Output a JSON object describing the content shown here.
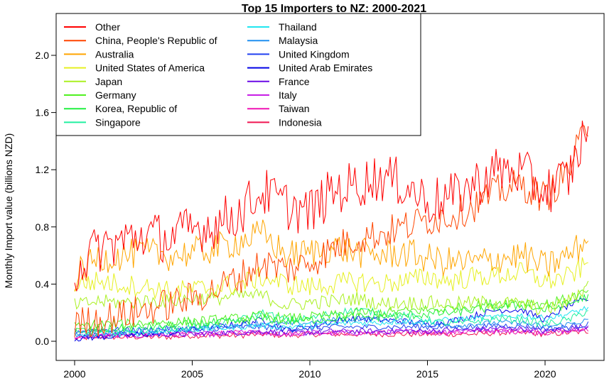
{
  "chart_data": {
    "type": "line",
    "title": "Top 15 Importers to NZ: 2000-2021",
    "ylabel": "Monthly Import value (billions NZD)",
    "xlabel": "",
    "xlim": [
      2000,
      2022
    ],
    "ylim": [
      0,
      2.1
    ],
    "x_ticks": [
      2000,
      2005,
      2010,
      2015,
      2020
    ],
    "y_ticks": [
      0.0,
      0.4,
      0.8,
      1.2,
      1.6,
      2.0
    ],
    "x_tick_labels": [
      "2000",
      "2005",
      "2010",
      "2015",
      "2020"
    ],
    "y_tick_labels": [
      "0.0",
      "0.4",
      "0.8",
      "1.2",
      "1.6",
      "2.0"
    ],
    "legend_position": "top-left",
    "series": [
      {
        "name": "Other",
        "color": "#FF0000",
        "x": [
          2000,
          2001,
          2002,
          2003,
          2004,
          2005,
          2006,
          2007,
          2008,
          2009,
          2010,
          2011,
          2012,
          2013,
          2014,
          2015,
          2016,
          2017,
          2018,
          2019,
          2020,
          2021,
          2021.9
        ],
        "values": [
          0.5,
          0.65,
          0.7,
          0.75,
          0.72,
          0.78,
          0.82,
          0.9,
          1.05,
          0.95,
          0.9,
          1.05,
          1.1,
          1.15,
          1.1,
          0.98,
          1.0,
          1.1,
          1.2,
          1.18,
          1.05,
          1.15,
          1.55
        ]
      },
      {
        "name": "China, People's Republic of",
        "color": "#FF4500",
        "x": [
          2000,
          2001,
          2002,
          2003,
          2004,
          2005,
          2006,
          2007,
          2008,
          2009,
          2010,
          2011,
          2012,
          2013,
          2014,
          2015,
          2016,
          2017,
          2018,
          2019,
          2020,
          2021,
          2021.9
        ],
        "values": [
          0.12,
          0.15,
          0.18,
          0.22,
          0.26,
          0.3,
          0.36,
          0.45,
          0.55,
          0.5,
          0.55,
          0.65,
          0.72,
          0.75,
          0.8,
          0.85,
          0.88,
          0.95,
          1.05,
          1.1,
          1.0,
          1.2,
          1.55
        ]
      },
      {
        "name": "Australia",
        "color": "#FFA500",
        "x": [
          2000,
          2001,
          2002,
          2003,
          2004,
          2005,
          2006,
          2007,
          2008,
          2009,
          2010,
          2011,
          2012,
          2013,
          2014,
          2015,
          2016,
          2017,
          2018,
          2019,
          2020,
          2021,
          2021.9
        ],
        "values": [
          0.45,
          0.58,
          0.6,
          0.62,
          0.6,
          0.62,
          0.65,
          0.7,
          0.75,
          0.6,
          0.62,
          0.66,
          0.62,
          0.6,
          0.62,
          0.58,
          0.55,
          0.55,
          0.58,
          0.6,
          0.52,
          0.6,
          0.72
        ]
      },
      {
        "name": "United States of America",
        "color": "#E6F020",
        "x": [
          2000,
          2001,
          2002,
          2003,
          2004,
          2005,
          2006,
          2007,
          2008,
          2009,
          2010,
          2011,
          2012,
          2013,
          2014,
          2015,
          2016,
          2017,
          2018,
          2019,
          2020,
          2021,
          2021.9
        ],
        "values": [
          0.4,
          0.42,
          0.4,
          0.38,
          0.35,
          0.36,
          0.38,
          0.4,
          0.45,
          0.4,
          0.38,
          0.4,
          0.42,
          0.4,
          0.42,
          0.45,
          0.42,
          0.45,
          0.46,
          0.48,
          0.42,
          0.45,
          0.55
        ]
      },
      {
        "name": "Japan",
        "color": "#AAF020",
        "x": [
          2000,
          2001,
          2002,
          2003,
          2004,
          2005,
          2006,
          2007,
          2008,
          2009,
          2010,
          2011,
          2012,
          2013,
          2014,
          2015,
          2016,
          2017,
          2018,
          2019,
          2020,
          2021,
          2021.9
        ],
        "values": [
          0.25,
          0.28,
          0.27,
          0.28,
          0.28,
          0.3,
          0.3,
          0.32,
          0.32,
          0.25,
          0.27,
          0.28,
          0.3,
          0.26,
          0.27,
          0.27,
          0.26,
          0.27,
          0.27,
          0.26,
          0.22,
          0.28,
          0.4
        ]
      },
      {
        "name": "Germany",
        "color": "#50F020",
        "x": [
          2000,
          2001,
          2002,
          2003,
          2004,
          2005,
          2006,
          2007,
          2008,
          2009,
          2010,
          2011,
          2012,
          2013,
          2014,
          2015,
          2016,
          2017,
          2018,
          2019,
          2020,
          2021,
          2021.9
        ],
        "values": [
          0.1,
          0.12,
          0.12,
          0.13,
          0.13,
          0.14,
          0.15,
          0.16,
          0.18,
          0.16,
          0.17,
          0.18,
          0.2,
          0.2,
          0.21,
          0.22,
          0.23,
          0.25,
          0.27,
          0.28,
          0.26,
          0.3,
          0.35
        ]
      },
      {
        "name": "Korea, Republic of",
        "color": "#20F040",
        "x": [
          2000,
          2001,
          2002,
          2003,
          2004,
          2005,
          2006,
          2007,
          2008,
          2009,
          2010,
          2011,
          2012,
          2013,
          2014,
          2015,
          2016,
          2017,
          2018,
          2019,
          2020,
          2021,
          2021.9
        ],
        "values": [
          0.07,
          0.08,
          0.09,
          0.1,
          0.11,
          0.12,
          0.13,
          0.14,
          0.16,
          0.14,
          0.15,
          0.16,
          0.17,
          0.17,
          0.18,
          0.19,
          0.2,
          0.22,
          0.24,
          0.25,
          0.22,
          0.26,
          0.32
        ]
      },
      {
        "name": "Singapore",
        "color": "#20F0A0",
        "x": [
          2000,
          2001,
          2002,
          2003,
          2004,
          2005,
          2006,
          2007,
          2008,
          2009,
          2010,
          2011,
          2012,
          2013,
          2014,
          2015,
          2016,
          2017,
          2018,
          2019,
          2020,
          2021,
          2021.9
        ],
        "values": [
          0.05,
          0.06,
          0.07,
          0.08,
          0.09,
          0.1,
          0.12,
          0.15,
          0.2,
          0.15,
          0.16,
          0.2,
          0.22,
          0.2,
          0.18,
          0.15,
          0.12,
          0.14,
          0.16,
          0.15,
          0.12,
          0.15,
          0.22
        ]
      },
      {
        "name": "Thailand",
        "color": "#20E6F0",
        "x": [
          2000,
          2001,
          2002,
          2003,
          2004,
          2005,
          2006,
          2007,
          2008,
          2009,
          2010,
          2011,
          2012,
          2013,
          2014,
          2015,
          2016,
          2017,
          2018,
          2019,
          2020,
          2021,
          2021.9
        ],
        "values": [
          0.04,
          0.05,
          0.05,
          0.06,
          0.07,
          0.08,
          0.09,
          0.1,
          0.11,
          0.1,
          0.11,
          0.12,
          0.13,
          0.13,
          0.14,
          0.14,
          0.15,
          0.16,
          0.17,
          0.18,
          0.16,
          0.19,
          0.24
        ]
      },
      {
        "name": "Malaysia",
        "color": "#2090F0",
        "x": [
          2000,
          2001,
          2002,
          2003,
          2004,
          2005,
          2006,
          2007,
          2008,
          2009,
          2010,
          2011,
          2012,
          2013,
          2014,
          2015,
          2016,
          2017,
          2018,
          2019,
          2020,
          2021,
          2021.9
        ],
        "values": [
          0.05,
          0.06,
          0.06,
          0.07,
          0.08,
          0.09,
          0.1,
          0.11,
          0.13,
          0.12,
          0.13,
          0.15,
          0.16,
          0.15,
          0.14,
          0.12,
          0.11,
          0.12,
          0.13,
          0.13,
          0.1,
          0.12,
          0.15
        ]
      },
      {
        "name": "United Kingdom",
        "color": "#2040F0",
        "x": [
          2000,
          2001,
          2002,
          2003,
          2004,
          2005,
          2006,
          2007,
          2008,
          2009,
          2010,
          2011,
          2012,
          2013,
          2014,
          2015,
          2016,
          2017,
          2018,
          2019,
          2020,
          2021,
          2021.9
        ],
        "values": [
          0.07,
          0.08,
          0.08,
          0.08,
          0.09,
          0.09,
          0.09,
          0.1,
          0.1,
          0.09,
          0.09,
          0.1,
          0.1,
          0.1,
          0.1,
          0.1,
          0.1,
          0.1,
          0.11,
          0.11,
          0.09,
          0.1,
          0.12
        ]
      },
      {
        "name": "United Arab Emirates",
        "color": "#0000E6",
        "x": [
          2000,
          2001,
          2002,
          2003,
          2004,
          2005,
          2006,
          2007,
          2008,
          2009,
          2010,
          2011,
          2012,
          2013,
          2014,
          2015,
          2016,
          2017,
          2018,
          2019,
          2020,
          2021,
          2021.9
        ],
        "values": [
          0.02,
          0.03,
          0.04,
          0.05,
          0.06,
          0.08,
          0.1,
          0.12,
          0.15,
          0.08,
          0.1,
          0.14,
          0.16,
          0.15,
          0.14,
          0.12,
          0.14,
          0.18,
          0.22,
          0.22,
          0.15,
          0.25,
          0.3
        ]
      },
      {
        "name": "France",
        "color": "#6A0AE6",
        "x": [
          2000,
          2001,
          2002,
          2003,
          2004,
          2005,
          2006,
          2007,
          2008,
          2009,
          2010,
          2011,
          2012,
          2013,
          2014,
          2015,
          2016,
          2017,
          2018,
          2019,
          2020,
          2021,
          2021.9
        ],
        "values": [
          0.04,
          0.04,
          0.05,
          0.05,
          0.05,
          0.05,
          0.06,
          0.06,
          0.07,
          0.06,
          0.06,
          0.07,
          0.07,
          0.07,
          0.07,
          0.07,
          0.08,
          0.08,
          0.09,
          0.09,
          0.07,
          0.09,
          0.11
        ]
      },
      {
        "name": "Italy",
        "color": "#C81EE6",
        "x": [
          2000,
          2001,
          2002,
          2003,
          2004,
          2005,
          2006,
          2007,
          2008,
          2009,
          2010,
          2011,
          2012,
          2013,
          2014,
          2015,
          2016,
          2017,
          2018,
          2019,
          2020,
          2021,
          2021.9
        ],
        "values": [
          0.03,
          0.04,
          0.04,
          0.04,
          0.05,
          0.05,
          0.05,
          0.06,
          0.06,
          0.05,
          0.06,
          0.06,
          0.06,
          0.06,
          0.07,
          0.07,
          0.07,
          0.08,
          0.08,
          0.08,
          0.07,
          0.08,
          0.1
        ]
      },
      {
        "name": "Taiwan",
        "color": "#F014B4",
        "x": [
          2000,
          2001,
          2002,
          2003,
          2004,
          2005,
          2006,
          2007,
          2008,
          2009,
          2010,
          2011,
          2012,
          2013,
          2014,
          2015,
          2016,
          2017,
          2018,
          2019,
          2020,
          2021,
          2021.9
        ],
        "values": [
          0.03,
          0.04,
          0.04,
          0.04,
          0.05,
          0.05,
          0.05,
          0.06,
          0.06,
          0.05,
          0.06,
          0.06,
          0.06,
          0.06,
          0.06,
          0.06,
          0.06,
          0.07,
          0.07,
          0.07,
          0.06,
          0.07,
          0.09
        ]
      },
      {
        "name": "Indonesia",
        "color": "#F01450",
        "x": [
          2000,
          2001,
          2002,
          2003,
          2004,
          2005,
          2006,
          2007,
          2008,
          2009,
          2010,
          2011,
          2012,
          2013,
          2014,
          2015,
          2016,
          2017,
          2018,
          2019,
          2020,
          2021,
          2021.9
        ],
        "values": [
          0.02,
          0.03,
          0.03,
          0.03,
          0.03,
          0.04,
          0.04,
          0.04,
          0.05,
          0.04,
          0.05,
          0.05,
          0.05,
          0.05,
          0.05,
          0.05,
          0.05,
          0.05,
          0.06,
          0.06,
          0.05,
          0.06,
          0.07
        ]
      }
    ]
  }
}
